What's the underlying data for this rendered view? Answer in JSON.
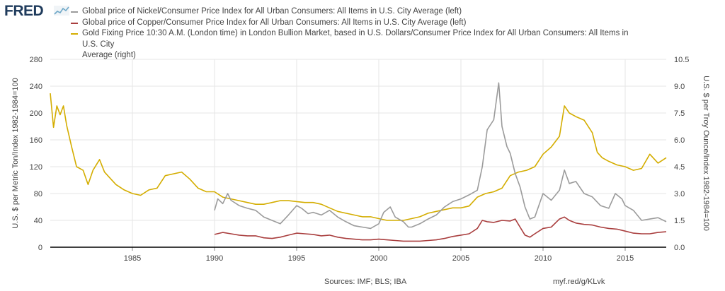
{
  "header": {
    "logo_text": "FRED",
    "logo_icon": "line-graph-icon",
    "brand_color": "#1f3b5c"
  },
  "legend": [
    {
      "label": "Global price of Nickel/Consumer Price Index for All Urban Consumers: All Items in U.S. City Average (left)",
      "color": "#9b9b9b"
    },
    {
      "label": "Global price of Copper/Consumer Price Index for All Urban Consumers: All Items in U.S. City Average (left)",
      "color": "#a93e3e"
    },
    {
      "label_line1": "Gold Fixing Price 10:30 A.M. (London time) in London Bullion Market, based in U.S. Dollars/Consumer Price Index for All Urban Consumers: All Items in U.S. City",
      "label_line2": "Average (right)",
      "color": "#d4ad00"
    }
  ],
  "footer": {
    "sources": "Sources: IMF; BLS; IBA",
    "url": "myf.red/g/KLvk"
  },
  "chart_data": {
    "type": "line",
    "ylabel_left": "U.S. $ per Metric Ton/Index 1982-1984=100",
    "ylabel_right": "U.S. $ per Troy Ounce/Index 1982-1984=100",
    "xlim": [
      1980,
      2017.5
    ],
    "ylim_left": [
      0,
      280
    ],
    "ylim_right": [
      0,
      10.5
    ],
    "x_ticks": [
      1985,
      1990,
      1995,
      2000,
      2005,
      2010,
      2015
    ],
    "y_ticks_left": [
      0,
      40,
      80,
      120,
      160,
      200,
      240,
      280
    ],
    "y_ticks_right": [
      "0.0",
      "1.5",
      "3.0",
      "4.5",
      "6.0",
      "7.5",
      "9.0",
      "10.5"
    ],
    "grid": true,
    "legend_position": "top",
    "series": [
      {
        "name": "Global price of Nickel/Consumer Price Index for All Urban Consumers: All Items in U.S. City Average (left)",
        "axis": "left",
        "color": "#9b9b9b",
        "x": [
          1990.0,
          1990.2,
          1990.5,
          1990.8,
          1991.0,
          1991.5,
          1992.0,
          1992.5,
          1993.0,
          1993.5,
          1994.0,
          1994.5,
          1995.0,
          1995.3,
          1995.7,
          1996.0,
          1996.5,
          1997.0,
          1997.5,
          1998.0,
          1998.5,
          1999.0,
          1999.5,
          2000.0,
          2000.3,
          2000.7,
          2001.0,
          2001.5,
          2001.8,
          2002.0,
          2002.5,
          2003.0,
          2003.5,
          2004.0,
          2004.5,
          2005.0,
          2005.5,
          2006.0,
          2006.3,
          2006.6,
          2007.0,
          2007.3,
          2007.5,
          2007.8,
          2008.0,
          2008.3,
          2008.6,
          2008.9,
          2009.2,
          2009.5,
          2010.0,
          2010.5,
          2011.0,
          2011.3,
          2011.6,
          2012.0,
          2012.5,
          2013.0,
          2013.5,
          2014.0,
          2014.4,
          2014.8,
          2015.0,
          2015.5,
          2016.0,
          2016.5,
          2017.0,
          2017.5
        ],
        "y": [
          55,
          72,
          65,
          80,
          70,
          62,
          58,
          55,
          45,
          40,
          35,
          48,
          62,
          58,
          50,
          52,
          48,
          55,
          45,
          38,
          32,
          30,
          28,
          35,
          52,
          60,
          45,
          38,
          30,
          30,
          35,
          42,
          48,
          60,
          68,
          72,
          78,
          85,
          120,
          175,
          190,
          245,
          180,
          150,
          140,
          110,
          90,
          60,
          42,
          45,
          80,
          70,
          85,
          115,
          95,
          98,
          80,
          75,
          62,
          58,
          80,
          72,
          62,
          55,
          40,
          42,
          44,
          38
        ]
      },
      {
        "name": "Global price of Copper/Consumer Price Index for All Urban Consumers: All Items in U.S. City Average (left)",
        "axis": "left",
        "color": "#a93e3e",
        "x": [
          1990.0,
          1990.5,
          1991.0,
          1991.5,
          1992.0,
          1992.5,
          1993.0,
          1993.5,
          1994.0,
          1994.5,
          1995.0,
          1995.5,
          1996.0,
          1996.5,
          1997.0,
          1997.5,
          1998.0,
          1998.5,
          1999.0,
          1999.5,
          2000.0,
          2000.5,
          2001.0,
          2001.5,
          2002.0,
          2002.5,
          2003.0,
          2003.5,
          2004.0,
          2004.5,
          2005.0,
          2005.5,
          2006.0,
          2006.3,
          2006.6,
          2007.0,
          2007.5,
          2008.0,
          2008.3,
          2008.6,
          2008.9,
          2009.2,
          2009.5,
          2010.0,
          2010.5,
          2011.0,
          2011.3,
          2011.6,
          2012.0,
          2012.5,
          2013.0,
          2013.5,
          2014.0,
          2014.5,
          2015.0,
          2015.5,
          2016.0,
          2016.5,
          2017.0,
          2017.5
        ],
        "y": [
          19,
          22,
          20,
          18,
          17,
          17,
          14,
          13,
          15,
          18,
          21,
          20,
          19,
          17,
          18,
          15,
          13,
          12,
          11,
          11,
          12,
          11,
          10,
          9,
          9,
          9,
          10,
          11,
          13,
          16,
          18,
          20,
          28,
          40,
          38,
          37,
          40,
          39,
          42,
          30,
          18,
          15,
          20,
          28,
          30,
          42,
          45,
          40,
          36,
          34,
          33,
          30,
          28,
          27,
          24,
          21,
          20,
          20,
          22,
          23
        ]
      },
      {
        "name": "Gold Fixing Price 10:30 A.M. (London time) in London Bullion Market, based in U.S. Dollars/Consumer Price Index for All Urban Consumers: All Items in U.S. City Average (right)",
        "axis": "right",
        "color": "#d4ad00",
        "x": [
          1980.0,
          1980.2,
          1980.4,
          1980.6,
          1980.8,
          1981.0,
          1981.3,
          1981.6,
          1982.0,
          1982.3,
          1982.6,
          1983.0,
          1983.3,
          1983.6,
          1984.0,
          1984.5,
          1985.0,
          1985.5,
          1986.0,
          1986.5,
          1987.0,
          1987.5,
          1988.0,
          1988.5,
          1989.0,
          1989.5,
          1990.0,
          1990.5,
          1991.0,
          1991.5,
          1992.0,
          1992.5,
          1993.0,
          1993.5,
          1994.0,
          1994.5,
          1995.0,
          1995.5,
          1996.0,
          1996.5,
          1997.0,
          1997.5,
          1998.0,
          1998.5,
          1999.0,
          1999.5,
          2000.0,
          2000.5,
          2001.0,
          2001.5,
          2002.0,
          2002.5,
          2003.0,
          2003.5,
          2004.0,
          2004.5,
          2005.0,
          2005.5,
          2006.0,
          2006.5,
          2007.0,
          2007.5,
          2008.0,
          2008.5,
          2009.0,
          2009.5,
          2010.0,
          2010.5,
          2011.0,
          2011.3,
          2011.6,
          2012.0,
          2012.5,
          2013.0,
          2013.3,
          2013.6,
          2014.0,
          2014.5,
          2015.0,
          2015.5,
          2016.0,
          2016.5,
          2017.0,
          2017.5
        ],
        "y": [
          8.6,
          6.7,
          7.9,
          7.4,
          7.9,
          6.8,
          5.6,
          4.5,
          4.3,
          3.5,
          4.3,
          4.9,
          4.2,
          3.9,
          3.5,
          3.2,
          3.0,
          2.9,
          3.2,
          3.3,
          4.0,
          4.1,
          4.2,
          3.8,
          3.3,
          3.1,
          3.1,
          2.8,
          2.7,
          2.6,
          2.5,
          2.4,
          2.4,
          2.5,
          2.6,
          2.6,
          2.55,
          2.5,
          2.5,
          2.4,
          2.2,
          2.0,
          1.9,
          1.8,
          1.7,
          1.7,
          1.6,
          1.5,
          1.5,
          1.5,
          1.6,
          1.7,
          1.9,
          2.0,
          2.1,
          2.2,
          2.2,
          2.3,
          2.8,
          3.0,
          3.1,
          3.3,
          4.0,
          4.2,
          4.3,
          4.5,
          5.2,
          5.6,
          6.2,
          7.9,
          7.5,
          7.3,
          7.1,
          6.4,
          5.3,
          5.0,
          4.8,
          4.6,
          4.5,
          4.3,
          4.4,
          5.2,
          4.7,
          5.0
        ]
      }
    ]
  }
}
